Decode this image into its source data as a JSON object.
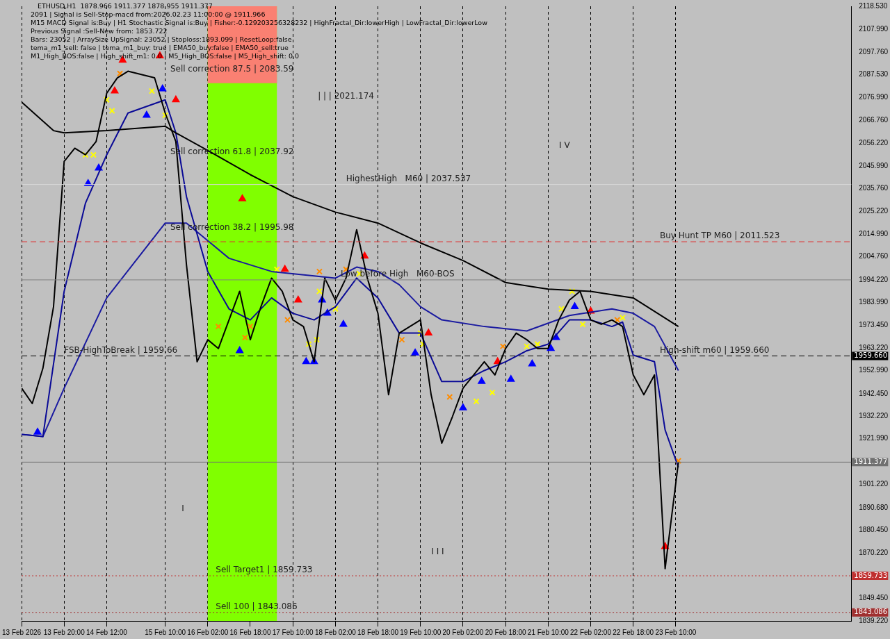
{
  "chart_data": {
    "type": "line",
    "title": "ETHUSD,H1  1878.966 1911.377 1878.955 1911.377",
    "subtitle": "2091 | Signal is Sell-Stop-macd from:2026.02.23 11:00:00 @ 1911.966\nM15 MACD Signal is:Buy | H1 Stochastic Signal is:Buy | Fisher:-0.129203256328232 | HighFractal_Dir:lowerHigh | LowFractal_Dir:lowerLow\nPrevious Signal :Sell-New from: 1853.722\nBars: 23052 | ArraySize UpSignal: 23052 | Stoploss:1893.099 | ResetLoop:false\ntema_m1_sell: false | tema_m1_buy: true | EMA50_buy:false | EMA50_sell:true\nM1_High_BOS:false | High_shift_m1: 0.0 | M5_High_BOS:false | M5_High_shift: 0.0",
    "annotations": [
      "Sell correction 87.5 | 2083.59",
      "Sell correction 61.8 | 2037.92",
      "Sell correction 38.2 | 1995.98",
      "| | | 2021.174",
      "I V",
      "I I I",
      "I",
      {
        "text": "Sell Target1 | 1859.733",
        "x": "2026-02-16T05:00",
        "y": 1859.733
      },
      {
        "text": "Sell 100 | 1843.086",
        "x": "2026-02-16T05:00",
        "y": 1843.086
      },
      {
        "text": "FSB-HighToBreak | 1959.66",
        "x": "2026-02-13T20:00",
        "y": 1959.66
      },
      {
        "text": "High-shift m60 | 1959.660",
        "x": "2026-02-23T04:00",
        "y": 1959.66
      },
      {
        "text": "Buy Hunt TP M60 | 2011.523",
        "x": "2026-02-23T04:00",
        "y": 2011.523
      },
      {
        "text": "HighestHigh   M60 | 2037.537",
        "x": "2026-02-18T06:00",
        "y": 2037.537
      },
      {
        "text": "Low before High   M60-BOS",
        "x": "2026-02-18T04:00",
        "y": 1994.2
      }
    ],
    "xlim": [
      "2026-02-13T04:00",
      "2026-02-26T04:00"
    ],
    "xticks": [
      {
        "value": "2026-02-13T04:00",
        "label": "13 Feb 2026"
      },
      {
        "value": "2026-02-13T20:00",
        "label": "13 Feb 20:00"
      },
      {
        "value": "2026-02-14T12:00",
        "label": "14 Feb 12:00"
      },
      {
        "value": "2026-02-15T10:00",
        "label": "15 Feb 10:00"
      },
      {
        "value": "2026-02-16T02:00",
        "label": "16 Feb 02:00"
      },
      {
        "value": "2026-02-16T18:00",
        "label": "16 Feb 18:00"
      },
      {
        "value": "2026-02-17T10:00",
        "label": "17 Feb 10:00"
      },
      {
        "value": "2026-02-18T02:00",
        "label": "18 Feb 02:00"
      },
      {
        "value": "2026-02-18T18:00",
        "label": "18 Feb 18:00"
      },
      {
        "value": "2026-02-19T10:00",
        "label": "19 Feb 10:00"
      },
      {
        "value": "2026-02-20T02:00",
        "label": "20 Feb 02:00"
      },
      {
        "value": "2026-02-20T18:00",
        "label": "20 Feb 18:00"
      },
      {
        "value": "2026-02-21T10:00",
        "label": "21 Feb 10:00"
      },
      {
        "value": "2026-02-22T02:00",
        "label": "22 Feb 02:00"
      },
      {
        "value": "2026-02-22T18:00",
        "label": "22 Feb 18:00"
      },
      {
        "value": "2026-02-23T10:00",
        "label": "23 Feb 10:00"
      }
    ],
    "ylim": [
      1839.22,
      2118.53
    ],
    "yticks": [
      {
        "value": 2118.53,
        "label": "2118.530"
      },
      {
        "value": 2107.99,
        "label": "2107.990"
      },
      {
        "value": 2097.76,
        "label": "2097.760"
      },
      {
        "value": 2087.53,
        "label": "2087.530"
      },
      {
        "value": 2076.99,
        "label": "2076.990"
      },
      {
        "value": 2066.76,
        "label": "2066.760"
      },
      {
        "value": 2056.22,
        "label": "2056.220"
      },
      {
        "value": 2045.99,
        "label": "2045.990"
      },
      {
        "value": 2035.76,
        "label": "2035.760"
      },
      {
        "value": 2025.22,
        "label": "2025.220"
      },
      {
        "value": 2014.99,
        "label": "2014.990"
      },
      {
        "value": 2004.76,
        "label": "2004.760"
      },
      {
        "value": 1994.22,
        "label": "1994.220"
      },
      {
        "value": 1983.99,
        "label": "1983.990"
      },
      {
        "value": 1973.45,
        "label": "1973.450"
      },
      {
        "value": 1963.22,
        "label": "1963.220"
      },
      {
        "value": 1952.99,
        "label": "1952.990"
      },
      {
        "value": 1942.45,
        "label": "1942.450"
      },
      {
        "value": 1932.22,
        "label": "1932.220"
      },
      {
        "value": 1921.99,
        "label": "1921.990"
      },
      {
        "value": 1901.22,
        "label": "1901.220"
      },
      {
        "value": 1890.68,
        "label": "1890.680"
      },
      {
        "value": 1880.45,
        "label": "1880.450"
      },
      {
        "value": 1870.22,
        "label": "1870.220"
      },
      {
        "value": 1849.45,
        "label": "1849.450"
      },
      {
        "value": 1839.22,
        "label": "1839.220"
      }
    ],
    "grid": "x",
    "legend": false,
    "bands": [
      {
        "axis": "x",
        "from": "2026-02-16T02:00",
        "to": "2026-02-17T04:00",
        "color": "#80ff00"
      },
      {
        "axis": "y",
        "from": 2083.59,
        "to": 2118.53,
        "color": "#fa8072"
      }
    ],
    "ref_lines": [
      {
        "axis": "y",
        "value": 1959.66,
        "label": "1959.660",
        "color": "#000000",
        "line_style": "dashed"
      },
      {
        "axis": "y",
        "value": 1911.377,
        "label": "1911.377",
        "color": "#707070"
      },
      {
        "axis": "y",
        "value": 2011.523,
        "color": "#e03030",
        "line_style": "dashed"
      },
      {
        "axis": "y",
        "value": 1859.733,
        "label": "1859.733",
        "color": "#c03030",
        "line_style": "dotted"
      },
      {
        "axis": "y",
        "value": 1843.086,
        "label": "1843.086",
        "color": "#a03030",
        "line_style": "dotted"
      },
      {
        "axis": "y",
        "value": 2037.537,
        "color": "#d8d8d8"
      },
      {
        "axis": "y",
        "value": 1994.2,
        "color": "#808080"
      }
    ],
    "x": [
      "2026-02-13T04:00",
      "2026-02-13T08:00",
      "2026-02-13T12:00",
      "2026-02-13T16:00",
      "2026-02-13T20:00",
      "2026-02-14T00:00",
      "2026-02-14T04:00",
      "2026-02-14T08:00",
      "2026-02-14T12:00",
      "2026-02-14T16:00",
      "2026-02-14T20:00",
      "2026-02-15T06:00",
      "2026-02-15T10:00",
      "2026-02-15T14:00",
      "2026-02-15T18:00",
      "2026-02-15T22:00",
      "2026-02-16T02:00",
      "2026-02-16T06:00",
      "2026-02-16T10:00",
      "2026-02-16T14:00",
      "2026-02-16T18:00",
      "2026-02-16T22:00",
      "2026-02-17T02:00",
      "2026-02-17T06:00",
      "2026-02-17T10:00",
      "2026-02-17T14:00",
      "2026-02-17T18:00",
      "2026-02-17T22:00",
      "2026-02-18T02:00",
      "2026-02-18T06:00",
      "2026-02-18T10:00",
      "2026-02-18T14:00",
      "2026-02-18T18:00",
      "2026-02-18T22:00",
      "2026-02-19T02:00",
      "2026-02-19T06:00",
      "2026-02-19T10:00",
      "2026-02-19T14:00",
      "2026-02-19T18:00",
      "2026-02-19T22:00",
      "2026-02-20T02:00",
      "2026-02-20T06:00",
      "2026-02-20T10:00",
      "2026-02-20T14:00",
      "2026-02-20T18:00",
      "2026-02-20T22:00",
      "2026-02-21T02:00",
      "2026-02-21T06:00",
      "2026-02-21T10:00",
      "2026-02-21T14:00",
      "2026-02-21T18:00",
      "2026-02-21T22:00",
      "2026-02-22T02:00",
      "2026-02-22T06:00",
      "2026-02-22T10:00",
      "2026-02-22T14:00",
      "2026-02-22T18:00",
      "2026-02-22T22:00",
      "2026-02-23T02:00",
      "2026-02-23T06:00",
      "2026-02-23T11:00"
    ],
    "series": [
      {
        "color": "#000000",
        "values": [
          1945,
          1938,
          1954,
          1982,
          2048,
          2054,
          2051,
          2057,
          2079,
          2086,
          2089,
          2086,
          2070,
          2057,
          2001,
          1957,
          1967,
          1963,
          1976,
          1989,
          1967,
          1982,
          1995,
          1989,
          1976,
          1973,
          1957,
          1995,
          1985,
          1995,
          2017,
          1995,
          1979,
          1942,
          1970,
          1973,
          1976,
          1942,
          1920,
          1932,
          1945,
          1951,
          1957,
          1951,
          1963,
          1970,
          1967,
          1963,
          1963,
          1976,
          1985,
          1989,
          1976,
          1974,
          1976,
          1973,
          1951,
          1942,
          1951,
          1863,
          1911.4
        ]
      },
      {
        "color": "#000000",
        "values": [
          2075,
          null,
          null,
          2062,
          2061,
          null,
          null,
          null,
          2062,
          null,
          null,
          null,
          2064,
          2061,
          null,
          null,
          2053,
          null,
          null,
          null,
          2042,
          null,
          null,
          null,
          2032,
          null,
          null,
          null,
          2025,
          null,
          null,
          null,
          2020,
          null,
          null,
          null,
          2011,
          null,
          null,
          null,
          2003,
          null,
          null,
          null,
          1993,
          null,
          null,
          null,
          1990,
          null,
          null,
          null,
          1989,
          null,
          null,
          null,
          1986,
          null,
          null,
          null,
          1973
        ]
      },
      {
        "color": "#0a0a96",
        "values": [
          1924,
          null,
          1923,
          null,
          1989,
          null,
          2029,
          null,
          2051,
          null,
          2070,
          null,
          2076,
          2061,
          2032,
          null,
          1998,
          null,
          1981,
          null,
          1976,
          null,
          1986,
          null,
          1979,
          null,
          1976,
          null,
          1982,
          null,
          1995,
          null,
          1986,
          null,
          1970,
          null,
          1970,
          null,
          1948,
          null,
          1948,
          null,
          1953,
          null,
          1957,
          null,
          1962,
          null,
          1965,
          null,
          1976,
          null,
          1976,
          null,
          1973,
          1975,
          1960,
          null,
          1957,
          1926,
          1909
        ]
      },
      {
        "color": "#1a1aa0",
        "values": [
          1924,
          null,
          1923,
          null,
          1945,
          null,
          null,
          null,
          1986,
          null,
          null,
          null,
          2020,
          null,
          2020,
          null,
          2012,
          null,
          2004,
          null,
          null,
          null,
          1998,
          null,
          null,
          null,
          1996,
          null,
          1995,
          null,
          2000,
          null,
          1998,
          null,
          1992,
          null,
          1982,
          null,
          1976,
          null,
          null,
          null,
          1973,
          null,
          null,
          null,
          1971,
          null,
          null,
          null,
          1978,
          null,
          null,
          null,
          1981,
          null,
          1979,
          null,
          1973,
          null,
          1953
        ]
      },
      {
        "type": "scatter",
        "marker": "cross",
        "color": "#ffff00",
        "x": [
          "2026-02-14T12:00",
          "2026-02-14T14:00",
          "2026-02-15T05:00",
          "2026-02-15T10:00",
          "2026-02-14T04:00",
          "2026-02-14T07:00",
          "2026-02-17T04:00",
          "2026-02-17T20:00",
          "2026-02-18T02:00",
          "2026-02-17T16:00",
          "2026-02-17T19:00",
          "2026-02-18T11:00",
          "2026-02-19T10:00",
          "2026-02-19T11:00",
          "2026-02-20T07:00",
          "2026-02-20T13:00",
          "2026-02-21T02:00",
          "2026-02-21T06:00",
          "2026-02-21T15:00",
          "2026-02-21T19:00",
          "2026-02-21T23:00",
          "2026-02-22T14:00"
        ],
        "values": [
          2076,
          2071,
          2080,
          2069,
          2051,
          2051,
          1999,
          1989,
          1981,
          1965,
          1967,
          1997,
          1970,
          1965,
          1939,
          1943,
          1964,
          1965,
          1981,
          1989,
          1974,
          1977
        ]
      },
      {
        "type": "scatter",
        "marker": "triangle",
        "color": "#0000ff",
        "x": [
          "2026-02-13T10:00",
          "2026-02-14T05:00",
          "2026-02-14T09:00",
          "2026-02-15T03:00",
          "2026-02-15T09:00",
          "2026-02-16T14:00",
          "2026-02-17T15:00",
          "2026-02-17T18:00",
          "2026-02-17T21:00",
          "2026-02-17T23:00",
          "2026-02-18T05:00",
          "2026-02-19T08:00",
          "2026-02-20T02:00",
          "2026-02-20T09:00",
          "2026-02-20T20:00",
          "2026-02-21T04:00",
          "2026-02-21T11:00",
          "2026-02-21T13:00",
          "2026-02-21T20:00"
        ],
        "values": [
          1925,
          2038,
          2045,
          2069,
          2081,
          1962,
          1957,
          1957,
          1985,
          1979,
          1974,
          1961,
          1936,
          1948,
          1949,
          1956,
          1963,
          1968,
          1982
        ]
      },
      {
        "type": "scatter",
        "marker": "triangle",
        "color": "#ff0000",
        "x": [
          "2026-02-14T15:00",
          "2026-02-14T18:00",
          "2026-02-15T08:00",
          "2026-02-15T14:00",
          "2026-02-16T15:00",
          "2026-02-17T07:00",
          "2026-02-17T12:00",
          "2026-02-18T13:00",
          "2026-02-19T13:00",
          "2026-02-20T15:00",
          "2026-02-22T02:00",
          "2026-02-23T06:00"
        ],
        "values": [
          2080,
          2094,
          2096,
          2076,
          2031,
          1999,
          1985,
          2005,
          1970,
          1957,
          1980,
          1873
        ]
      },
      {
        "type": "scatter",
        "marker": "cross",
        "color": "#ff8c00",
        "x": [
          "2026-02-14T17:00",
          "2026-02-16T06:00",
          "2026-02-16T16:00",
          "2026-02-16T18:00",
          "2026-02-17T08:00",
          "2026-02-17T20:00",
          "2026-02-18T06:00",
          "2026-02-19T03:00",
          "2026-02-19T21:00",
          "2026-02-20T17:00",
          "2026-02-22T12:00",
          "2026-02-23T11:00"
        ],
        "values": [
          2088,
          1973,
          1968,
          1973,
          1976,
          1998,
          1999,
          1967,
          1941,
          1964,
          1976,
          1912
        ]
      }
    ]
  }
}
